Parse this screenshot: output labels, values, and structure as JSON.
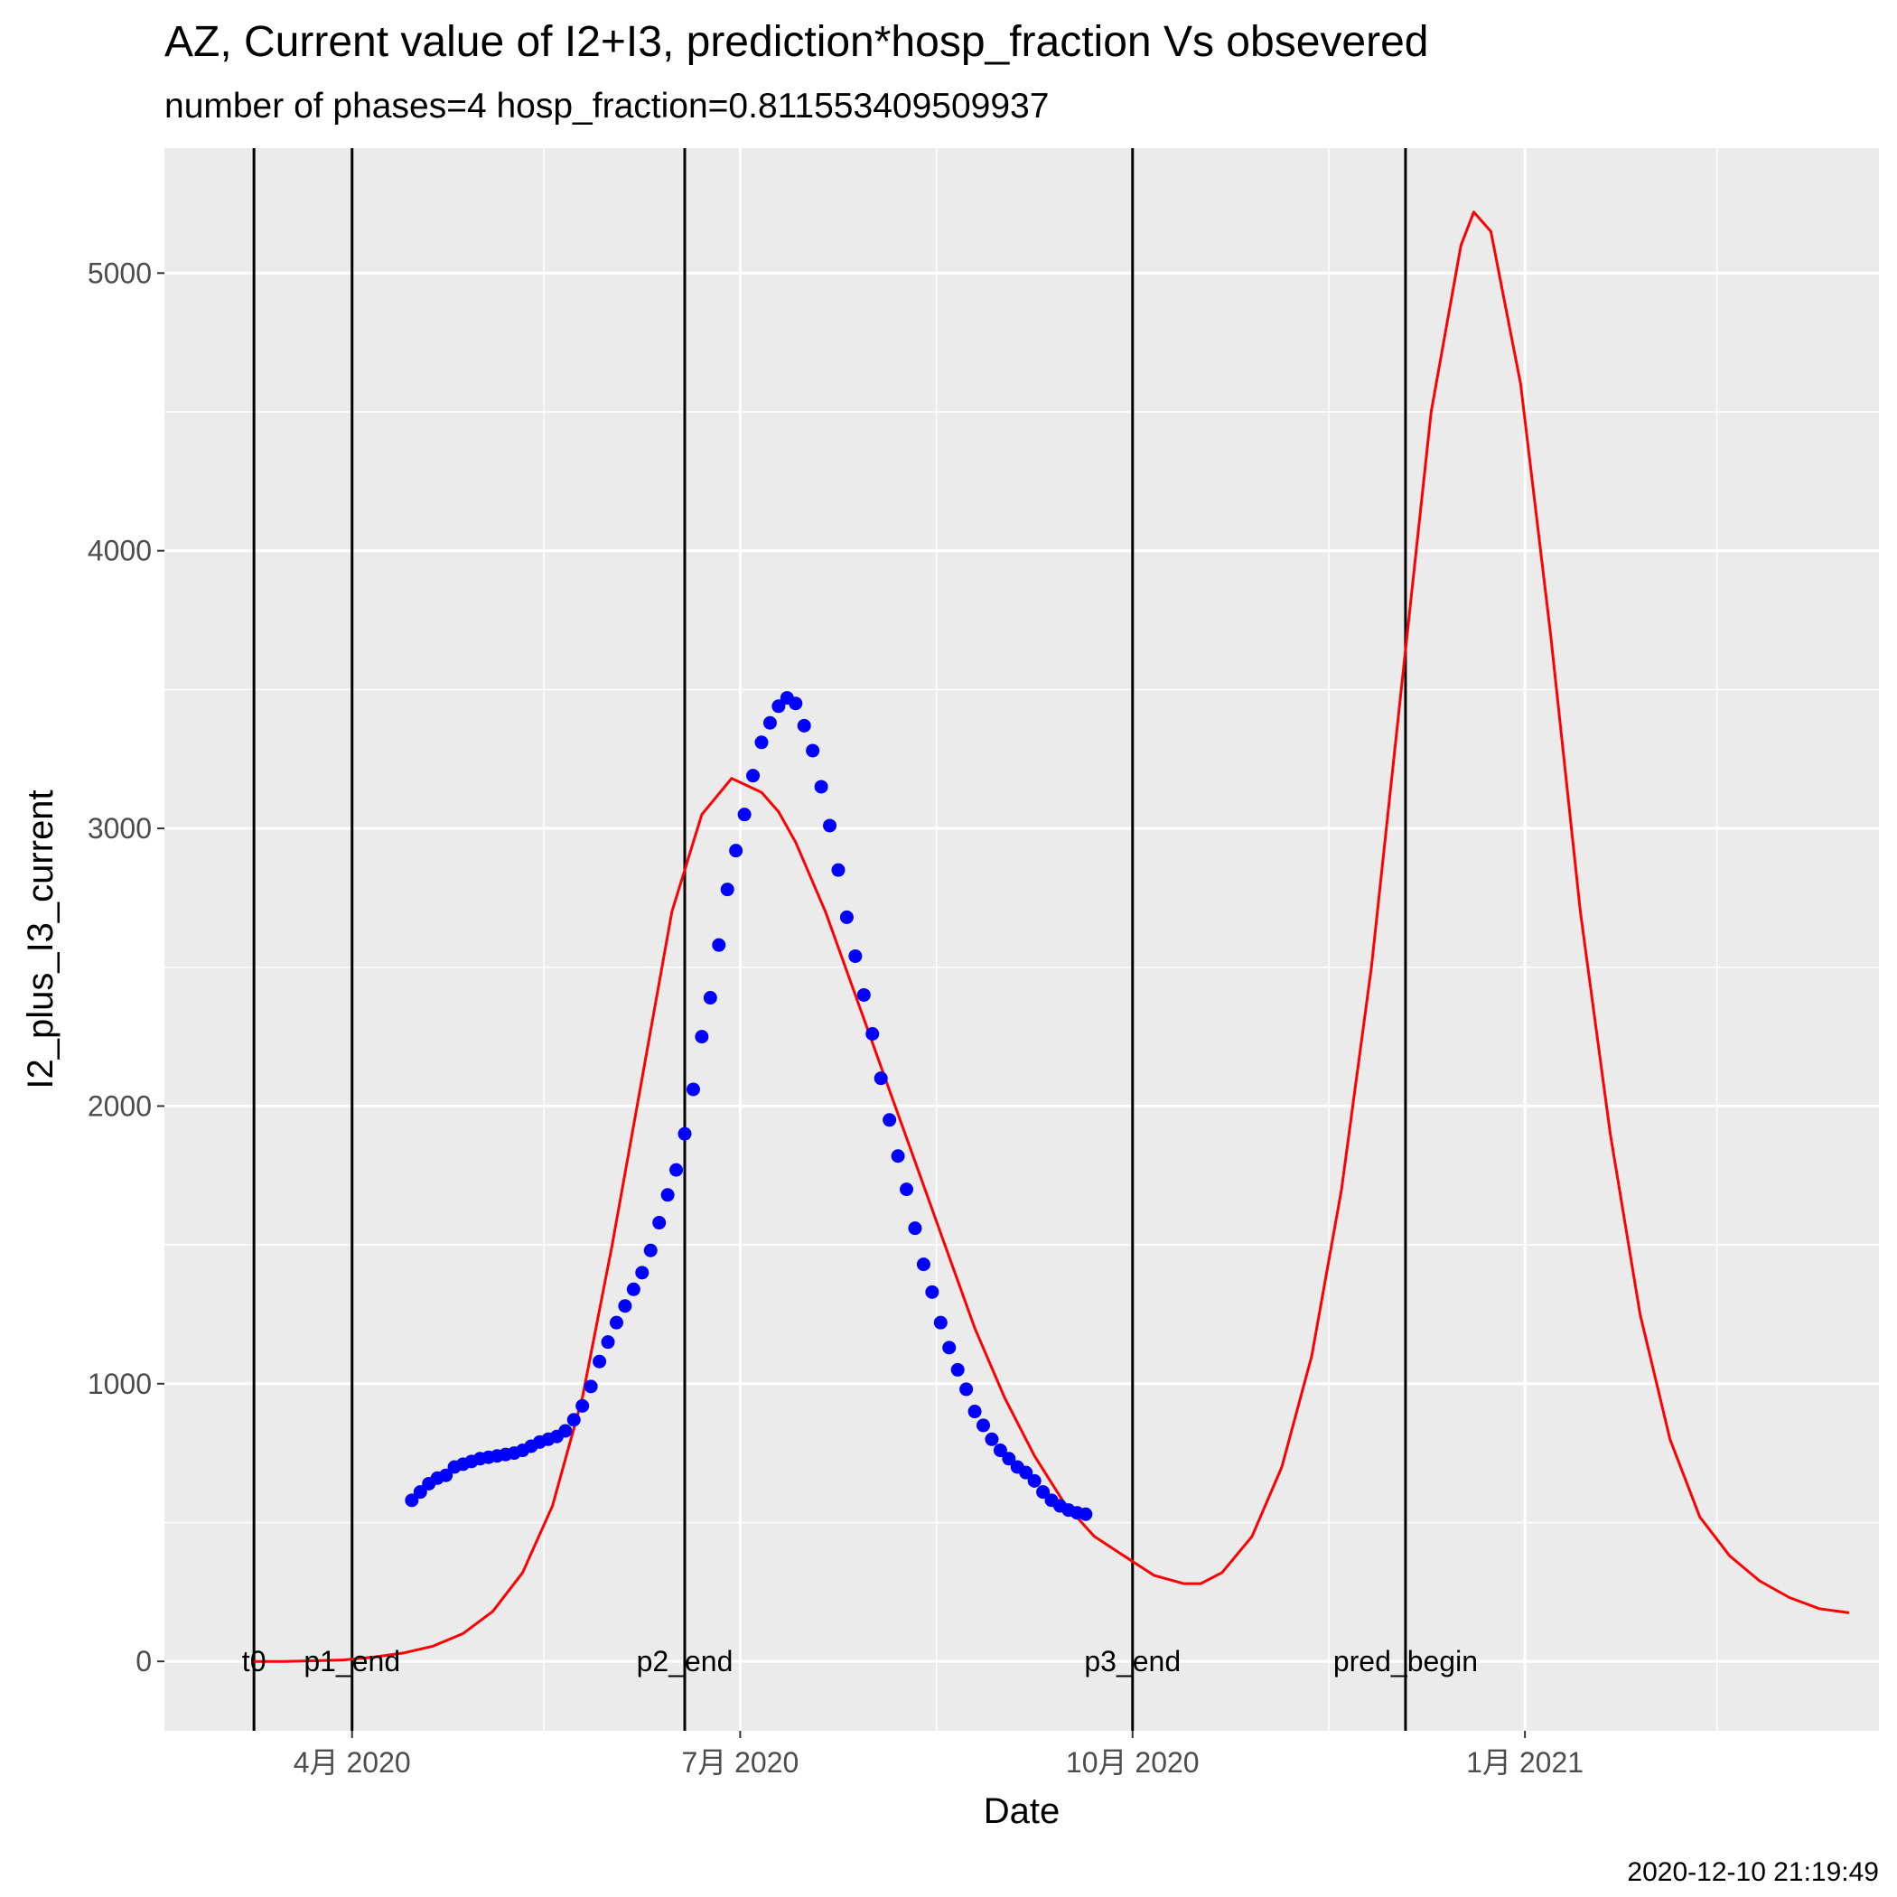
{
  "chart_data": {
    "type": "line",
    "title": "AZ, Current value of I2+I3, prediction*hosp_fraction Vs obsevered",
    "subtitle": "number of phases=4   hosp_fraction=0.811553409509937",
    "xlabel": "Date",
    "ylabel": "I2_plus_I3_current",
    "caption": "2020-12-10 21:19:49",
    "xlim": [
      "2020-02-17",
      "2021-03-25"
    ],
    "ylim": [
      -250,
      5450
    ],
    "grid": true,
    "x_ticks": [
      {
        "date": "2020-04-01",
        "label": "4月 2020"
      },
      {
        "date": "2020-07-01",
        "label": "7月 2020"
      },
      {
        "date": "2020-10-01",
        "label": "10月 2020"
      },
      {
        "date": "2021-01-01",
        "label": "1月 2021"
      }
    ],
    "x_minor_ticks": [
      "2020-02-15",
      "2020-05-16",
      "2020-08-16",
      "2020-11-16",
      "2021-02-15"
    ],
    "y_ticks": [
      0,
      1000,
      2000,
      3000,
      4000,
      5000
    ],
    "y_minor_ticks": [
      500,
      1500,
      2500,
      3500,
      4500
    ],
    "vlines": [
      {
        "date": "2020-03-09",
        "label": "t0"
      },
      {
        "date": "2020-04-01",
        "label": "p1_end"
      },
      {
        "date": "2020-06-18",
        "label": "p2_end"
      },
      {
        "date": "2020-10-01",
        "label": "p3_end"
      },
      {
        "date": "2020-12-04",
        "label": "pred_begin"
      }
    ],
    "series": [
      {
        "kind": "points",
        "color": "#0000ff",
        "x": [
          "2020-04-15",
          "2020-04-17",
          "2020-04-19",
          "2020-04-21",
          "2020-04-23",
          "2020-04-25",
          "2020-04-27",
          "2020-04-29",
          "2020-05-01",
          "2020-05-03",
          "2020-05-05",
          "2020-05-07",
          "2020-05-09",
          "2020-05-11",
          "2020-05-13",
          "2020-05-15",
          "2020-05-17",
          "2020-05-19",
          "2020-05-21",
          "2020-05-23",
          "2020-05-25",
          "2020-05-27",
          "2020-05-29",
          "2020-05-31",
          "2020-06-02",
          "2020-06-04",
          "2020-06-06",
          "2020-06-08",
          "2020-06-10",
          "2020-06-12",
          "2020-06-14",
          "2020-06-16",
          "2020-06-18",
          "2020-06-20",
          "2020-06-22",
          "2020-06-24",
          "2020-06-26",
          "2020-06-28",
          "2020-06-30",
          "2020-07-02",
          "2020-07-04",
          "2020-07-06",
          "2020-07-08",
          "2020-07-10",
          "2020-07-12",
          "2020-07-14",
          "2020-07-16",
          "2020-07-18",
          "2020-07-20",
          "2020-07-22",
          "2020-07-24",
          "2020-07-26",
          "2020-07-28",
          "2020-07-30",
          "2020-08-01",
          "2020-08-03",
          "2020-08-05",
          "2020-08-07",
          "2020-08-09",
          "2020-08-11",
          "2020-08-13",
          "2020-08-15",
          "2020-08-17",
          "2020-08-19",
          "2020-08-21",
          "2020-08-23",
          "2020-08-25",
          "2020-08-27",
          "2020-08-29",
          "2020-08-31",
          "2020-09-02",
          "2020-09-04",
          "2020-09-06",
          "2020-09-08",
          "2020-09-10",
          "2020-09-12",
          "2020-09-14",
          "2020-09-16",
          "2020-09-18",
          "2020-09-20"
        ],
        "y": [
          580,
          610,
          640,
          660,
          670,
          700,
          710,
          720,
          730,
          735,
          740,
          745,
          750,
          760,
          775,
          790,
          800,
          810,
          830,
          870,
          920,
          990,
          1080,
          1150,
          1220,
          1280,
          1340,
          1400,
          1480,
          1580,
          1680,
          1770,
          1900,
          2060,
          2250,
          2390,
          2580,
          2780,
          2920,
          3050,
          3190,
          3310,
          3380,
          3440,
          3470,
          3450,
          3370,
          3280,
          3150,
          3010,
          2850,
          2680,
          2540,
          2400,
          2260,
          2100,
          1950,
          1820,
          1700,
          1560,
          1430,
          1330,
          1220,
          1130,
          1050,
          980,
          900,
          850,
          800,
          760,
          730,
          700,
          680,
          650,
          610,
          580,
          560,
          545,
          535,
          530
        ]
      },
      {
        "kind": "line",
        "color": "#ff0000",
        "x": [
          "2020-03-09",
          "2020-03-16",
          "2020-03-23",
          "2020-03-30",
          "2020-04-06",
          "2020-04-13",
          "2020-04-20",
          "2020-04-27",
          "2020-05-04",
          "2020-05-11",
          "2020-05-18",
          "2020-05-25",
          "2020-06-01",
          "2020-06-08",
          "2020-06-15",
          "2020-06-22",
          "2020-06-29",
          "2020-07-06",
          "2020-07-10",
          "2020-07-14",
          "2020-07-21",
          "2020-07-28",
          "2020-08-04",
          "2020-08-11",
          "2020-08-18",
          "2020-08-25",
          "2020-09-01",
          "2020-09-08",
          "2020-09-15",
          "2020-09-22",
          "2020-09-29",
          "2020-10-06",
          "2020-10-13",
          "2020-10-17",
          "2020-10-22",
          "2020-10-29",
          "2020-11-05",
          "2020-11-12",
          "2020-11-19",
          "2020-11-26",
          "2020-12-03",
          "2020-12-10",
          "2020-12-17",
          "2020-12-20",
          "2020-12-24",
          "2020-12-31",
          "2021-01-07",
          "2021-01-14",
          "2021-01-21",
          "2021-01-28",
          "2021-02-04",
          "2021-02-11",
          "2021-02-18",
          "2021-02-25",
          "2021-03-04",
          "2021-03-11",
          "2021-03-18"
        ],
        "y": [
          0,
          0,
          2,
          5,
          15,
          30,
          55,
          100,
          180,
          320,
          560,
          950,
          1500,
          2100,
          2700,
          3050,
          3180,
          3130,
          3060,
          2950,
          2700,
          2400,
          2100,
          1800,
          1500,
          1200,
          950,
          740,
          570,
          450,
          380,
          310,
          280,
          280,
          320,
          450,
          700,
          1100,
          1700,
          2500,
          3500,
          4500,
          5100,
          5220,
          5150,
          4600,
          3700,
          2700,
          1900,
          1250,
          800,
          520,
          380,
          290,
          230,
          190,
          175
        ]
      }
    ]
  }
}
